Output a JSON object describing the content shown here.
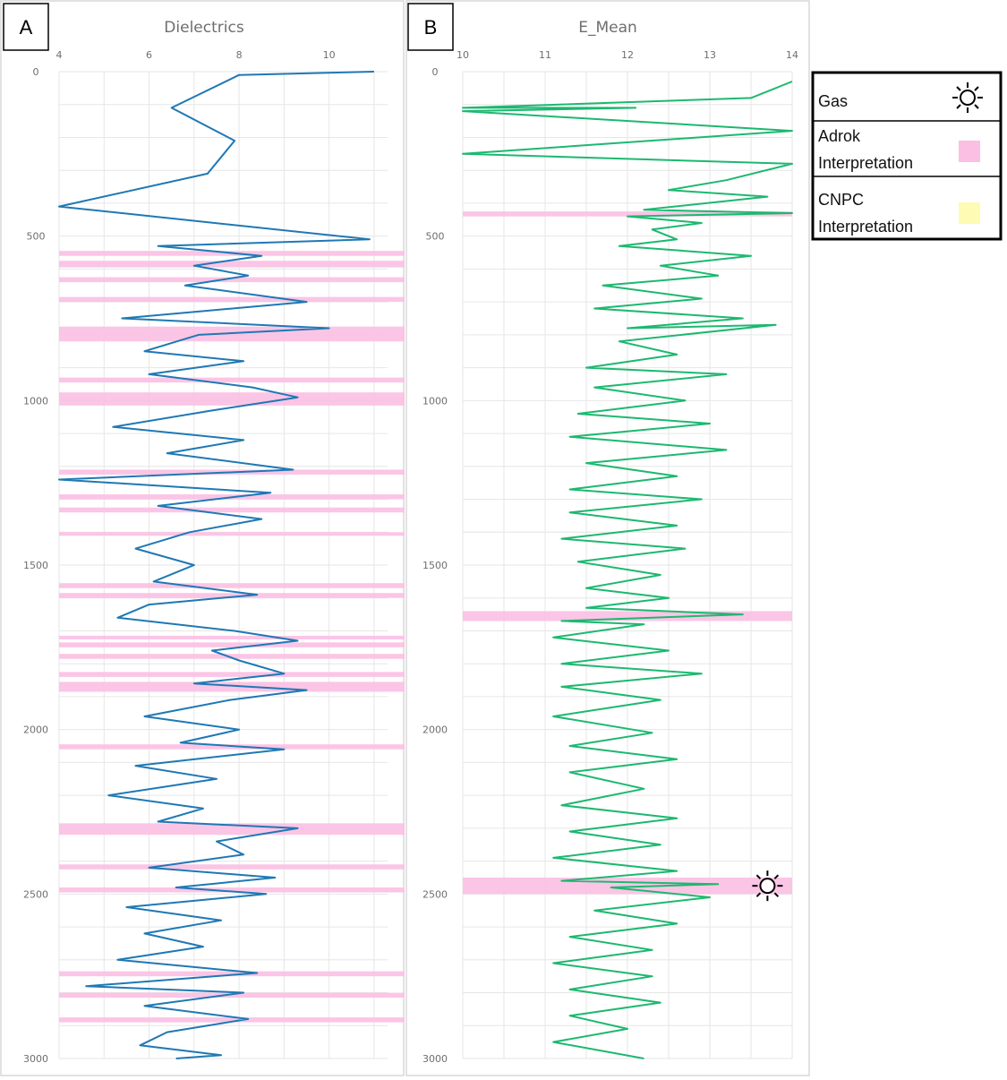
{
  "chart_data": [
    {
      "panel_letter": "A",
      "type": "line",
      "title": "Dielectrics",
      "x_ticks": [
        "4",
        "6",
        "8",
        "10"
      ],
      "y_ticks": [
        "0",
        "500",
        "1000",
        "1500",
        "2000",
        "2500",
        "3000"
      ],
      "xlim": [
        4,
        11.3
      ],
      "ylim": [
        0,
        3000
      ],
      "y_inverted": true,
      "grid": true,
      "series": [
        {
          "color": "#1f78b4",
          "points": [
            [
              11,
              0
            ],
            [
              8,
              10
            ],
            [
              6.5,
              110
            ],
            [
              7.9,
              210
            ],
            [
              7.3,
              310
            ],
            [
              4,
              410
            ],
            [
              10.9,
              510
            ],
            [
              6.2,
              530
            ],
            [
              8.5,
              560
            ],
            [
              7,
              590
            ],
            [
              8.2,
              620
            ],
            [
              6.8,
              650
            ],
            [
              9.5,
              700
            ],
            [
              5.4,
              750
            ],
            [
              10,
              780
            ],
            [
              7.1,
              800
            ],
            [
              5.9,
              850
            ],
            [
              8.1,
              880
            ],
            [
              6,
              920
            ],
            [
              8.3,
              960
            ],
            [
              9.3,
              990
            ],
            [
              7.4,
              1030
            ],
            [
              5.2,
              1080
            ],
            [
              8.1,
              1120
            ],
            [
              6.4,
              1160
            ],
            [
              9.2,
              1210
            ],
            [
              4,
              1240
            ],
            [
              8.7,
              1280
            ],
            [
              6.2,
              1320
            ],
            [
              8.5,
              1360
            ],
            [
              6.9,
              1400
            ],
            [
              5.7,
              1450
            ],
            [
              7,
              1500
            ],
            [
              6.1,
              1550
            ],
            [
              8.4,
              1590
            ],
            [
              6,
              1620
            ],
            [
              5.3,
              1660
            ],
            [
              7.9,
              1700
            ],
            [
              9.3,
              1730
            ],
            [
              7.4,
              1760
            ],
            [
              8,
              1790
            ],
            [
              9,
              1830
            ],
            [
              7,
              1860
            ],
            [
              9.5,
              1880
            ],
            [
              7.8,
              1910
            ],
            [
              5.9,
              1960
            ],
            [
              8,
              2000
            ],
            [
              6.7,
              2040
            ],
            [
              9,
              2060
            ],
            [
              5.7,
              2110
            ],
            [
              7.5,
              2150
            ],
            [
              5.1,
              2200
            ],
            [
              7.2,
              2240
            ],
            [
              6.2,
              2280
            ],
            [
              9.3,
              2300
            ],
            [
              7.5,
              2340
            ],
            [
              8.1,
              2380
            ],
            [
              6,
              2420
            ],
            [
              8.8,
              2450
            ],
            [
              6.6,
              2480
            ],
            [
              8.6,
              2500
            ],
            [
              5.5,
              2540
            ],
            [
              7.6,
              2580
            ],
            [
              5.9,
              2620
            ],
            [
              7.2,
              2660
            ],
            [
              5.3,
              2700
            ],
            [
              8.4,
              2740
            ],
            [
              4.6,
              2780
            ],
            [
              8.1,
              2800
            ],
            [
              5.9,
              2840
            ],
            [
              8.2,
              2880
            ],
            [
              6.4,
              2920
            ],
            [
              5.8,
              2960
            ],
            [
              7.6,
              2990
            ],
            [
              6.6,
              3000
            ]
          ]
        }
      ],
      "highlight_bands": [
        {
          "label": "Adrok Interpretation",
          "ranges": [
            [
              545,
              560
            ],
            [
              575,
              595
            ],
            [
              625,
              640
            ],
            [
              685,
              700
            ],
            [
              775,
              820
            ],
            [
              930,
              945
            ],
            [
              975,
              1015
            ],
            [
              1210,
              1225
            ],
            [
              1285,
              1300
            ],
            [
              1325,
              1340
            ],
            [
              1400,
              1410
            ],
            [
              1555,
              1570
            ],
            [
              1585,
              1600
            ],
            [
              1715,
              1725
            ],
            [
              1735,
              1750
            ],
            [
              1770,
              1785
            ],
            [
              1825,
              1840
            ],
            [
              1855,
              1885
            ],
            [
              2045,
              2060
            ],
            [
              2285,
              2320
            ],
            [
              2410,
              2425
            ],
            [
              2480,
              2495
            ],
            [
              2735,
              2750
            ],
            [
              2800,
              2815
            ],
            [
              2875,
              2890
            ]
          ]
        }
      ]
    },
    {
      "panel_letter": "B",
      "type": "line",
      "title": "E_Mean",
      "x_ticks": [
        "10",
        "11",
        "12",
        "13",
        "14"
      ],
      "y_ticks": [
        "0",
        "500",
        "1000",
        "1500",
        "2000",
        "2500",
        "3000"
      ],
      "xlim": [
        10,
        14
      ],
      "ylim": [
        0,
        3000
      ],
      "y_inverted": true,
      "grid": true,
      "series": [
        {
          "color": "#1db870",
          "points": [
            [
              14,
              30
            ],
            [
              13.5,
              80
            ],
            [
              10,
              110
            ],
            [
              12.1,
              110
            ],
            [
              10,
              120
            ],
            [
              14,
              180
            ],
            [
              10,
              250
            ],
            [
              14,
              280
            ],
            [
              13.2,
              330
            ],
            [
              12.5,
              360
            ],
            [
              13.7,
              380
            ],
            [
              12.2,
              420
            ],
            [
              14,
              430
            ],
            [
              12,
              440
            ],
            [
              12.9,
              460
            ],
            [
              12.3,
              480
            ],
            [
              12.6,
              510
            ],
            [
              11.9,
              530
            ],
            [
              13.5,
              560
            ],
            [
              12.4,
              590
            ],
            [
              13.1,
              620
            ],
            [
              11.7,
              650
            ],
            [
              12.9,
              690
            ],
            [
              11.6,
              720
            ],
            [
              13.4,
              750
            ],
            [
              12,
              780
            ],
            [
              13.8,
              770
            ],
            [
              11.9,
              820
            ],
            [
              12.6,
              860
            ],
            [
              11.5,
              900
            ],
            [
              13.2,
              920
            ],
            [
              11.6,
              960
            ],
            [
              12.7,
              1000
            ],
            [
              11.4,
              1040
            ],
            [
              13,
              1070
            ],
            [
              11.3,
              1110
            ],
            [
              13.2,
              1150
            ],
            [
              11.5,
              1190
            ],
            [
              12.6,
              1230
            ],
            [
              11.3,
              1270
            ],
            [
              12.9,
              1300
            ],
            [
              11.3,
              1340
            ],
            [
              12.6,
              1380
            ],
            [
              11.2,
              1420
            ],
            [
              12.7,
              1450
            ],
            [
              11.4,
              1490
            ],
            [
              12.4,
              1530
            ],
            [
              11.5,
              1570
            ],
            [
              12.5,
              1600
            ],
            [
              11.5,
              1630
            ],
            [
              13.4,
              1650
            ],
            [
              11.2,
              1670
            ],
            [
              12.2,
              1680
            ],
            [
              11.1,
              1720
            ],
            [
              12.5,
              1760
            ],
            [
              11.2,
              1800
            ],
            [
              12.9,
              1830
            ],
            [
              11.2,
              1870
            ],
            [
              12.4,
              1910
            ],
            [
              11.1,
              1960
            ],
            [
              12.3,
              2010
            ],
            [
              11.3,
              2050
            ],
            [
              12.6,
              2090
            ],
            [
              11.3,
              2130
            ],
            [
              12.2,
              2180
            ],
            [
              11.2,
              2230
            ],
            [
              12.6,
              2270
            ],
            [
              11.3,
              2310
            ],
            [
              12.4,
              2350
            ],
            [
              11.1,
              2390
            ],
            [
              12.6,
              2430
            ],
            [
              11.2,
              2460
            ],
            [
              13.1,
              2470
            ],
            [
              11.8,
              2480
            ],
            [
              13,
              2510
            ],
            [
              11.6,
              2550
            ],
            [
              12.6,
              2590
            ],
            [
              11.3,
              2630
            ],
            [
              12.3,
              2670
            ],
            [
              11.1,
              2710
            ],
            [
              12.3,
              2750
            ],
            [
              11.3,
              2790
            ],
            [
              12.4,
              2830
            ],
            [
              11.3,
              2870
            ],
            [
              12,
              2910
            ],
            [
              11.1,
              2950
            ],
            [
              12.2,
              3000
            ]
          ]
        }
      ],
      "highlight_bands": [
        {
          "label": "Adrok Interpretation",
          "ranges": [
            [
              425,
              440
            ],
            [
              1640,
              1670
            ],
            [
              2450,
              2500
            ]
          ]
        }
      ],
      "gas_marker": {
        "icon": "sun-icon",
        "x": 13.7,
        "y": 2475
      }
    }
  ],
  "legend": {
    "items": [
      {
        "label": "Gas",
        "icon": "sun-icon"
      },
      {
        "label": "Adrok\nInterpretation",
        "swatch": "#fbbfe3"
      },
      {
        "label": "CNPC\nInterpretation",
        "swatch": "#fdfbb4"
      }
    ]
  },
  "colors": {
    "band": "#fbbfe3",
    "grid": "#e6e6e6",
    "axis_text": "#6e6e6e"
  }
}
